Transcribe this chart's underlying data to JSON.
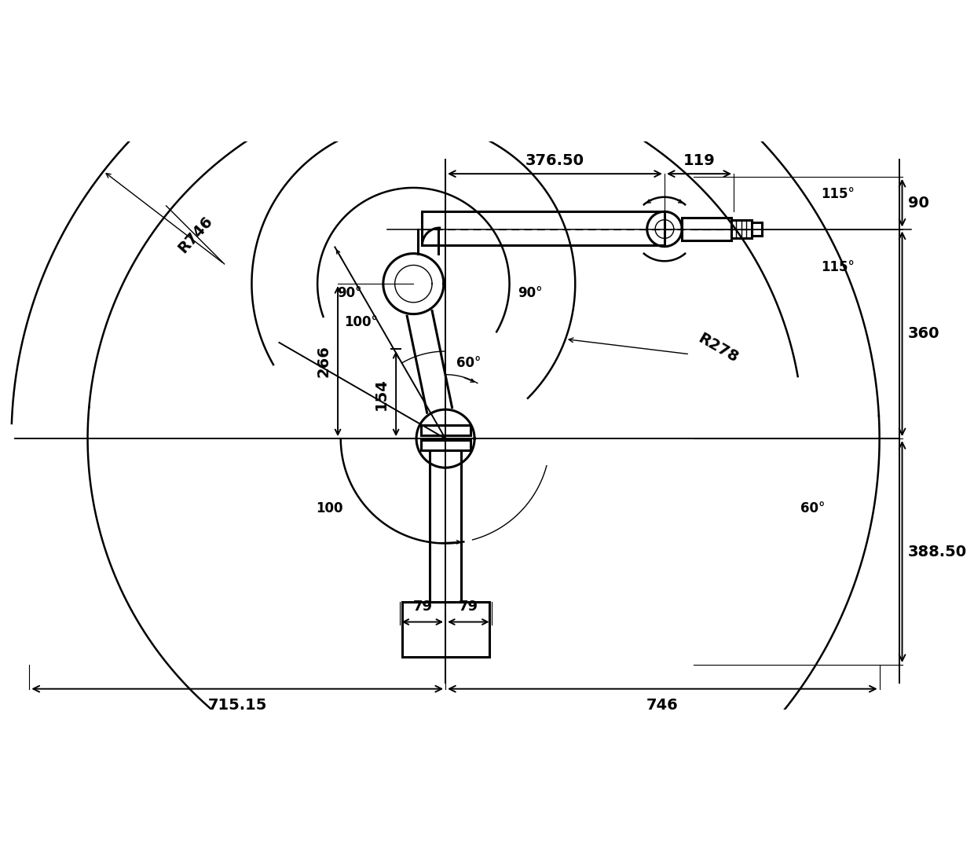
{
  "bg_color": "#ffffff",
  "lc": "#000000",
  "lw_robot": 2.2,
  "lw_arc": 1.8,
  "lw_dim": 1.4,
  "lw_thin": 1.0,
  "fs_dim": 14,
  "fs_ang": 12,
  "fs_rad": 13,
  "dim_376_50": "376.50",
  "dim_119": "119",
  "dim_90": "90",
  "dim_360": "360",
  "dim_388_50": "388.50",
  "dim_79_1": "79",
  "dim_79_2": "79",
  "dim_746": "746",
  "dim_715_15": "715.15",
  "dim_154": "154",
  "dim_266": "266",
  "dim_R746": "R746",
  "dim_R278": "R278",
  "ang_60_upper": "60°",
  "ang_100_upper": "100°",
  "ang_115_upper": "115°",
  "ang_115_lower": "115°",
  "ang_90_left": "90°",
  "ang_90_right": "90°",
  "ang_60_lower": "60°",
  "ang_100_bottom": "100"
}
